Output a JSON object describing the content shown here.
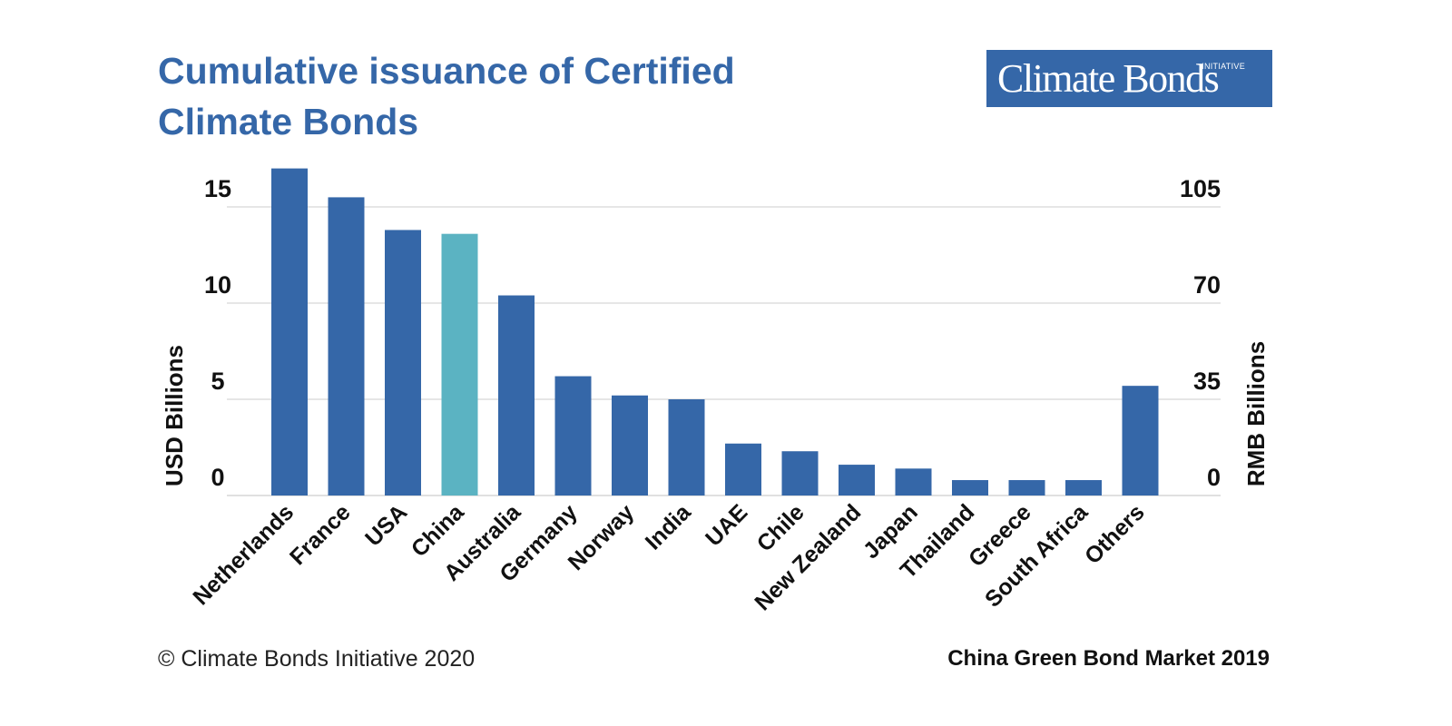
{
  "title": {
    "line1": "Cumulative issuance of Certified",
    "line2": "Climate Bonds"
  },
  "logo": {
    "main": "Climate Bonds",
    "sub": "INITIATIVE"
  },
  "footer": {
    "left": "© Climate Bonds Initiative 2020",
    "right": "China Green Bond Market 2019"
  },
  "colors": {
    "title": "#3567A8",
    "bar": "#3567A8",
    "highlight": "#5BB3C2",
    "grid": "#D6D6D6"
  },
  "chart_data": {
    "type": "bar",
    "categories": [
      "Netherlands",
      "France",
      "USA",
      "China",
      "Australia",
      "Germany",
      "Norway",
      "India",
      "UAE",
      "Chile",
      "New Zealand",
      "Japan",
      "Thailand",
      "Greece",
      "South Africa",
      "Others"
    ],
    "values": [
      17.0,
      15.5,
      13.8,
      13.6,
      10.4,
      6.2,
      5.2,
      5.0,
      2.7,
      2.3,
      1.6,
      1.4,
      0.8,
      0.8,
      0.8,
      5.7
    ],
    "highlight_category": "China",
    "ylabel": "USD Billions",
    "y2label": "RMB Billions",
    "ylim": [
      0,
      15
    ],
    "yticks": [
      "0",
      "5",
      "10",
      "15"
    ],
    "y2ticks": [
      "0",
      "35",
      "70",
      "105"
    ],
    "grid": true
  }
}
